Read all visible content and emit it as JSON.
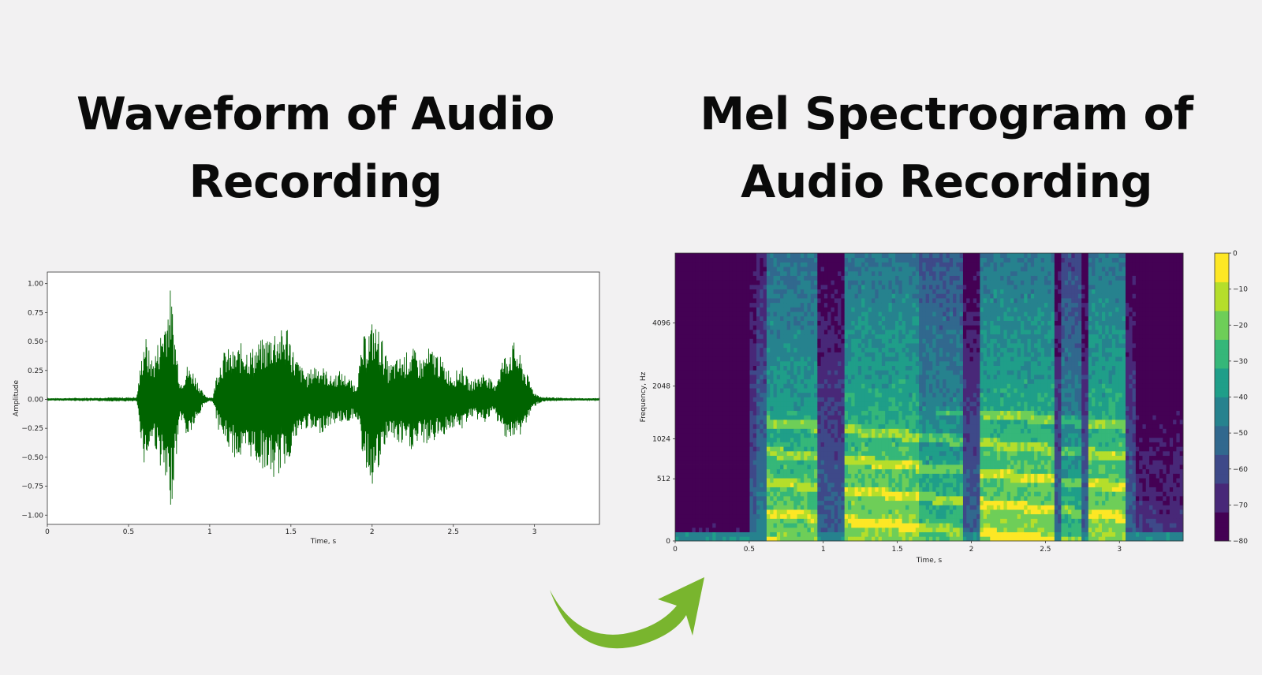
{
  "titles": {
    "left": [
      "Waveform of Audio",
      "Recording"
    ],
    "right": [
      "Mel Spectrogram of",
      "Audio Recording"
    ]
  },
  "colors": {
    "background": "#f2f1f2",
    "waveform": "#006400",
    "arrow": "#79b52e",
    "colormap": [
      "#440154",
      "#482878",
      "#3e4989",
      "#31688e",
      "#26828e",
      "#1f9e89",
      "#35b779",
      "#6ece58",
      "#b5de2b",
      "#fde725"
    ]
  },
  "icons": {
    "arrow": "curved-arrow-icon"
  },
  "chart_data": [
    {
      "type": "line",
      "subtype": "waveform",
      "title": "",
      "xlabel": "Time, s",
      "ylabel": "Amplitude",
      "xlim": [
        0,
        3.4
      ],
      "ylim": [
        -1.08,
        1.1
      ],
      "xticks": [
        0,
        0.5,
        1,
        1.5,
        2,
        2.5,
        3
      ],
      "xtick_labels": [
        "0",
        "0.5",
        "1",
        "1.5",
        "2",
        "2.5",
        "3"
      ],
      "yticks": [
        1.0,
        0.75,
        0.5,
        0.25,
        0.0,
        -0.25,
        -0.5,
        -0.75,
        -1.0
      ],
      "ytick_labels": [
        "1.00",
        "0.75",
        "0.50",
        "0.25",
        "0.00",
        "−0.25",
        "−0.50",
        "−0.75",
        "−1.00"
      ],
      "grid": false,
      "series": [
        {
          "envelope_time": [
            0,
            0.55,
            0.6,
            0.62,
            0.65,
            0.7,
            0.74,
            0.76,
            0.78,
            0.82,
            0.86,
            0.9,
            0.93,
            0.96,
            0.99,
            1.02,
            1.05,
            1.1,
            1.15,
            1.2,
            1.25,
            1.3,
            1.35,
            1.4,
            1.45,
            1.48,
            1.52,
            1.56,
            1.6,
            1.65,
            1.7,
            1.75,
            1.8,
            1.85,
            1.9,
            1.95,
            2.0,
            2.05,
            2.1,
            2.15,
            2.2,
            2.25,
            2.3,
            2.35,
            2.4,
            2.45,
            2.5,
            2.55,
            2.6,
            2.65,
            2.7,
            2.75,
            2.8,
            2.85,
            2.88,
            2.92,
            2.96,
            3.0,
            3.05,
            3.1,
            3.2,
            3.4
          ],
          "envelope_max": [
            0.01,
            0.02,
            0.6,
            0.45,
            0.35,
            0.6,
            0.85,
            0.98,
            0.65,
            0.15,
            0.3,
            0.25,
            0.15,
            0.05,
            0.02,
            0.02,
            0.3,
            0.45,
            0.42,
            0.5,
            0.44,
            0.5,
            0.55,
            0.63,
            0.6,
            0.68,
            0.4,
            0.3,
            0.22,
            0.32,
            0.28,
            0.2,
            0.25,
            0.2,
            0.12,
            0.55,
            0.68,
            0.6,
            0.3,
            0.35,
            0.4,
            0.45,
            0.35,
            0.45,
            0.42,
            0.3,
            0.22,
            0.3,
            0.15,
            0.2,
            0.25,
            0.12,
            0.35,
            0.48,
            0.5,
            0.35,
            0.2,
            0.06,
            0.02,
            0.02,
            0.01,
            0.01
          ],
          "envelope_min": [
            -0.01,
            -0.02,
            -0.6,
            -0.5,
            -0.35,
            -0.6,
            -0.9,
            -0.98,
            -0.7,
            -0.15,
            -0.35,
            -0.25,
            -0.18,
            -0.05,
            -0.02,
            -0.02,
            -0.25,
            -0.4,
            -0.5,
            -0.55,
            -0.5,
            -0.58,
            -0.62,
            -0.72,
            -0.6,
            -0.55,
            -0.4,
            -0.3,
            -0.25,
            -0.32,
            -0.28,
            -0.22,
            -0.2,
            -0.2,
            -0.15,
            -0.55,
            -0.75,
            -0.62,
            -0.3,
            -0.4,
            -0.42,
            -0.45,
            -0.38,
            -0.4,
            -0.35,
            -0.3,
            -0.25,
            -0.28,
            -0.15,
            -0.18,
            -0.2,
            -0.12,
            -0.3,
            -0.35,
            -0.38,
            -0.3,
            -0.18,
            -0.06,
            -0.02,
            -0.02,
            -0.01,
            -0.01
          ]
        }
      ]
    },
    {
      "type": "heatmap",
      "subtype": "mel-spectrogram",
      "title": "",
      "xlabel": "Time, s",
      "ylabel": "Frequency, Hz",
      "xlim": [
        0,
        3.43
      ],
      "xticks": [
        0,
        0.5,
        1,
        1.5,
        2,
        2.5,
        3
      ],
      "xtick_labels": [
        "0",
        "0.5",
        "1",
        "1.5",
        "2",
        "2.5",
        "3"
      ],
      "ytick_values": [
        0,
        512,
        1024,
        2048,
        4096
      ],
      "ytick_labels": [
        "0",
        "512",
        "1024",
        "2048",
        "4096"
      ],
      "ylim_hz": [
        0,
        8192
      ],
      "colorbar": {
        "range_db": [
          -80,
          0
        ],
        "ticks": [
          0,
          -10,
          -20,
          -30,
          -40,
          -50,
          -60,
          -70,
          -80
        ],
        "tick_labels": [
          "0",
          "−10",
          "−20",
          "−30",
          "−40",
          "−50",
          "−60",
          "−70",
          "−80"
        ]
      },
      "segments": [
        {
          "start": 0.0,
          "end": 0.5,
          "level_db": -75
        },
        {
          "start": 0.55,
          "end": 0.62,
          "level_db": -45
        },
        {
          "start": 0.62,
          "end": 0.95,
          "level_db": -25
        },
        {
          "start": 1.15,
          "end": 1.65,
          "level_db": -22
        },
        {
          "start": 1.65,
          "end": 1.95,
          "level_db": -32
        },
        {
          "start": 2.05,
          "end": 2.55,
          "level_db": -22
        },
        {
          "start": 2.6,
          "end": 2.75,
          "level_db": -35
        },
        {
          "start": 2.78,
          "end": 3.05,
          "level_db": -22
        },
        {
          "start": 3.1,
          "end": 3.43,
          "level_db": -65
        }
      ]
    }
  ]
}
